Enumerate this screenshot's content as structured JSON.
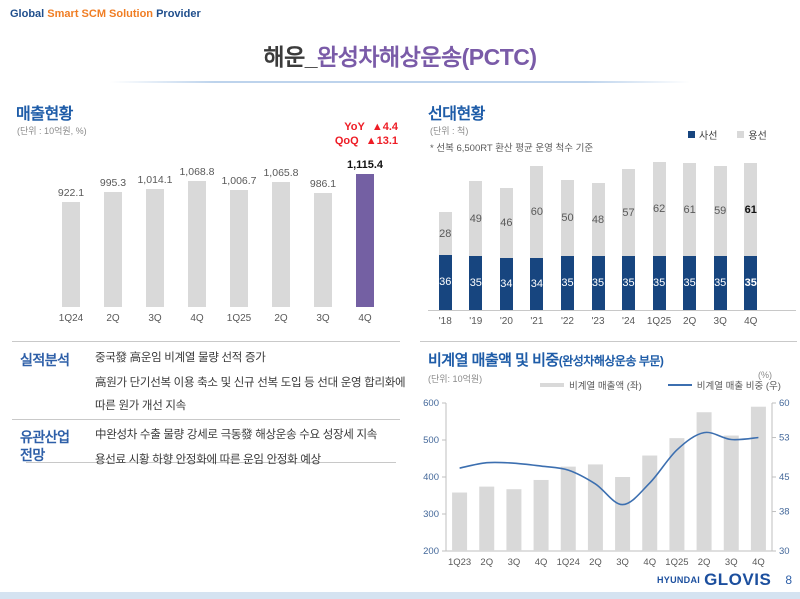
{
  "header": {
    "brand_global": "Global",
    "brand_mid": "Smart SCM Solution",
    "brand_provider": "Provider"
  },
  "title": {
    "dark": "해운_",
    "purple": "완성차해상운송(PCTC)"
  },
  "revenue_section": {
    "heading": "매출현황",
    "unit": "(단위 : 10억원, %)",
    "yoy_label": "YoY",
    "yoy_value": "▲4.4",
    "qoq_label": "QoQ",
    "qoq_value": "▲13.1"
  },
  "fleet_section": {
    "heading": "선대현황",
    "unit": "(단위 : 척)",
    "note": "* 선복 6,500RT 환산 평균 운영 척수 기준",
    "legend_owned": "사선",
    "legend_chartered": "용선"
  },
  "analysis_section": {
    "label": "실적분석",
    "line1": "중국發 高운임 비계열 물량 선적 증가",
    "line2": "高원가 단기선복 이용 축소 및 신규 선복 도입 등 선대 운영 합리화에 따른 원가 개선 지속"
  },
  "outlook_section": {
    "label_line1": "유관산업",
    "label_line2": "전망",
    "line1": "中완성차 수출 물량 강세로 극동發 해상운송 수요 성장세 지속",
    "line2": "용선료 시황 하향 안정화에 따른 운임 안정화 예상"
  },
  "nonaffiliated_section": {
    "heading_main": "비계열 매출액 및 비중",
    "heading_paren": "(완성차해상운송 부문)",
    "unit_left": "(단위: 10억원)",
    "unit_right": "(%)",
    "legend_bar": "비계열 매출액 (좌)",
    "legend_line": "비계열 매출 비중 (우)"
  },
  "footer": {
    "logo_top": "HYUNDAI",
    "logo_main": "GLOVIS",
    "page": "8"
  },
  "colors": {
    "accent_blue": "#1E5CA8",
    "navy_bar": "#17457F",
    "purple_bar": "#7460A3",
    "gray_bar": "#D9D9D9",
    "red": "#EE1C25",
    "orange": "#F07D23",
    "line_blue": "#3C6FB0",
    "footer_strip": "#D5E3F1"
  },
  "chart_data": [
    {
      "type": "bar",
      "title": "매출현황",
      "unit": "(단위 : 10억원, %)",
      "categories": [
        "1Q24",
        "2Q",
        "3Q",
        "4Q",
        "1Q25",
        "2Q",
        "3Q",
        "4Q"
      ],
      "values": [
        922.1,
        995.3,
        1014.1,
        1068.8,
        1006.7,
        1065.8,
        986.1,
        1115.4
      ],
      "labels": [
        "922.1",
        "995.3",
        "1,014.1",
        "1,068.8",
        "1,006.7",
        "1,065.8",
        "986.1",
        "1,115.4"
      ],
      "highlight_index": 7,
      "yoy": 4.4,
      "qoq": 13.1,
      "ylim": [
        200,
        1200
      ],
      "grid": false
    },
    {
      "type": "bar",
      "stacked": true,
      "title": "선대현황",
      "unit": "(단위 : 척)",
      "note": "* 선복 6,500RT 환산 평균 운영 척수 기준",
      "categories": [
        "'18",
        "'19",
        "'20",
        "'21",
        "'22",
        "'23",
        "'24",
        "1Q25",
        "2Q",
        "3Q",
        "4Q"
      ],
      "series": [
        {
          "name": "사선",
          "color": "#17457F",
          "values": [
            36,
            35,
            34,
            34,
            35,
            35,
            35,
            35,
            35,
            35,
            35
          ]
        },
        {
          "name": "용선",
          "color": "#D9D9D9",
          "values": [
            28,
            49,
            46,
            60,
            50,
            48,
            57,
            62,
            61,
            59,
            61
          ]
        }
      ],
      "legend_position": "top-right",
      "grid": false
    },
    {
      "type": "bar+line",
      "title": "비계열 매출액 및 비중(완성차해상운송 부문)",
      "unit_left": "(단위: 10억원)",
      "unit_right": "(%)",
      "categories": [
        "1Q23",
        "2Q",
        "3Q",
        "4Q",
        "1Q24",
        "2Q",
        "3Q",
        "4Q",
        "1Q25",
        "2Q",
        "3Q",
        "4Q"
      ],
      "series": [
        {
          "name": "비계열 매출액 (좌)",
          "type": "bar",
          "axis": "left",
          "color": "#D9D9D9",
          "values": [
            358,
            374,
            367,
            392,
            428,
            434,
            400,
            458,
            505,
            575,
            512,
            590
          ]
        },
        {
          "name": "비계열 매출 비중 (우)",
          "type": "line",
          "axis": "right",
          "color": "#3C6FB0",
          "values": [
            46.8,
            47.9,
            47.8,
            47.2,
            46.4,
            43.6,
            39.4,
            43.8,
            50.5,
            54.0,
            52.6,
            53.0
          ]
        }
      ],
      "left_axis": {
        "ticks": [
          600,
          500,
          400,
          300,
          200
        ],
        "range": [
          200,
          600
        ]
      },
      "right_axis": {
        "ticks": [
          60,
          53,
          45,
          38,
          30
        ],
        "range": [
          30,
          60
        ]
      },
      "legend_position": "top",
      "grid": false
    }
  ]
}
